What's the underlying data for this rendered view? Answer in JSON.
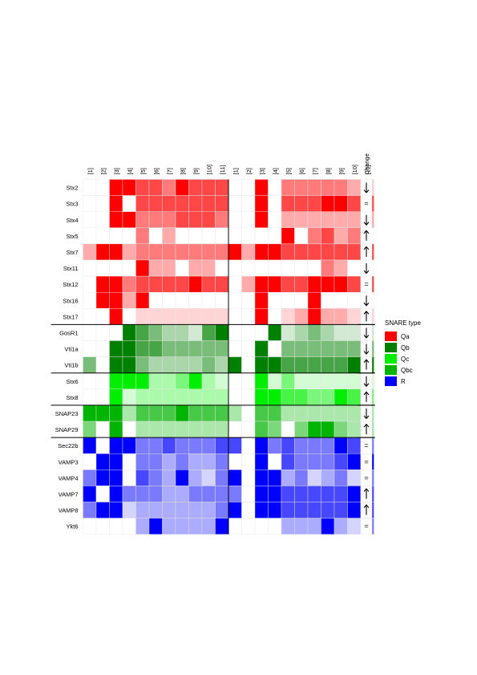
{
  "chart_data": {
    "type": "heatmap",
    "columns": [
      "[1]",
      "[2]",
      "[3]",
      "[4]",
      "[5]",
      "[6]",
      "[7]",
      "[8]",
      "[9]",
      "[10]",
      "[11]",
      "[1]",
      "[2]",
      "[3]",
      "[4]",
      "[5]",
      "[6]",
      "[7]",
      "[8]",
      "[9]",
      "[10]",
      "[11]"
    ],
    "change_header": "Change",
    "scale": "0 = absent (white), 1 = weak (very light), 2 = low, 3 = medium, 4 = high, 5 = strongest (full colour)",
    "legend": {
      "title": "SNARE type",
      "items": [
        {
          "label": "Qa",
          "color": "#ff0000"
        },
        {
          "label": "Qb",
          "color": "#008000"
        },
        {
          "label": "Qc",
          "color": "#00ee00"
        },
        {
          "label": "Qbc",
          "color": "#00b400"
        },
        {
          "label": "R",
          "color": "#0000ff"
        }
      ]
    },
    "rows": [
      {
        "name": "Stx2",
        "type": "Qa",
        "change": "↓",
        "values": [
          0,
          0,
          5,
          5,
          4,
          4,
          3,
          5,
          4,
          4,
          4,
          0,
          0,
          5,
          0,
          3,
          3,
          3,
          3,
          3,
          2,
          1
        ]
      },
      {
        "name": "Stx3",
        "type": "Qa",
        "change": "=",
        "values": [
          0,
          0,
          5,
          0,
          4,
          4,
          4,
          4,
          4,
          4,
          4,
          0,
          0,
          5,
          0,
          4,
          4,
          4,
          5,
          5,
          4,
          4
        ]
      },
      {
        "name": "Stx4",
        "type": "Qa",
        "change": "↓",
        "values": [
          0,
          0,
          5,
          5,
          3,
          3,
          3,
          4,
          4,
          4,
          3,
          0,
          0,
          5,
          0,
          2,
          2,
          2,
          2,
          2,
          2,
          2
        ]
      },
      {
        "name": "Stx5",
        "type": "Qa",
        "change": "↑",
        "values": [
          0,
          0,
          0,
          0,
          3,
          0,
          2,
          0,
          0,
          0,
          0,
          0,
          0,
          0,
          0,
          5,
          0,
          3,
          4,
          2,
          3,
          0
        ]
      },
      {
        "name": "Stx7",
        "type": "Qa",
        "change": "↑",
        "values": [
          2,
          5,
          5,
          2,
          3,
          3,
          3,
          3,
          3,
          3,
          3,
          5,
          2,
          5,
          5,
          4,
          4,
          4,
          4,
          4,
          4,
          4
        ]
      },
      {
        "name": "Stx11",
        "type": "Qa",
        "change": "↓",
        "values": [
          0,
          0,
          0,
          0,
          5,
          2,
          2,
          0,
          2,
          2,
          0,
          0,
          0,
          0,
          0,
          0,
          0,
          0,
          3,
          2,
          0,
          0
        ]
      },
      {
        "name": "Stx12",
        "type": "Qa",
        "change": "=",
        "values": [
          0,
          5,
          5,
          3,
          4,
          4,
          4,
          4,
          5,
          4,
          4,
          0,
          2,
          5,
          5,
          4,
          4,
          5,
          5,
          5,
          4,
          4
        ]
      },
      {
        "name": "Stx16",
        "type": "Qa",
        "change": "↓",
        "values": [
          0,
          5,
          5,
          2,
          5,
          0,
          0,
          0,
          0,
          0,
          0,
          0,
          0,
          5,
          0,
          0,
          0,
          5,
          0,
          0,
          0,
          0
        ]
      },
      {
        "name": "Stx17",
        "type": "Qa",
        "change": "↑",
        "values": [
          0,
          0,
          5,
          0,
          1,
          1,
          1,
          1,
          1,
          1,
          1,
          0,
          0,
          5,
          0,
          1,
          2,
          5,
          2,
          2,
          1,
          1
        ]
      },
      {
        "name": "GosR1",
        "type": "Qb",
        "change": "↓",
        "values": [
          0,
          0,
          0,
          5,
          4,
          3,
          2,
          2,
          1,
          4,
          5,
          0,
          0,
          0,
          5,
          1,
          2,
          3,
          2,
          1,
          1,
          1
        ]
      },
      {
        "name": "Vti1a",
        "type": "Qb",
        "change": "↓",
        "values": [
          0,
          0,
          5,
          5,
          4,
          4,
          3,
          3,
          3,
          3,
          3,
          0,
          0,
          5,
          0,
          3,
          3,
          3,
          3,
          3,
          3,
          3
        ]
      },
      {
        "name": "Vti1b",
        "type": "Qb",
        "change": "↑",
        "values": [
          3,
          0,
          5,
          5,
          3,
          2,
          2,
          2,
          2,
          3,
          2,
          5,
          0,
          5,
          5,
          4,
          4,
          4,
          4,
          4,
          5,
          5
        ]
      },
      {
        "name": "Stx6",
        "type": "Qc",
        "change": "↓",
        "values": [
          0,
          0,
          5,
          5,
          5,
          2,
          2,
          3,
          5,
          2,
          1,
          0,
          0,
          5,
          1,
          3,
          1,
          1,
          1,
          1,
          1,
          1
        ]
      },
      {
        "name": "Stx8",
        "type": "Qc",
        "change": "↑",
        "values": [
          0,
          0,
          5,
          1,
          2,
          2,
          2,
          2,
          2,
          2,
          2,
          0,
          0,
          5,
          5,
          4,
          4,
          3,
          3,
          5,
          4,
          3
        ]
      },
      {
        "name": "SNAP23",
        "type": "Qbc",
        "change": "↓",
        "values": [
          5,
          5,
          5,
          2,
          4,
          4,
          4,
          5,
          4,
          4,
          4,
          2,
          0,
          4,
          4,
          2,
          2,
          2,
          2,
          2,
          2,
          2
        ]
      },
      {
        "name": "SNAP29",
        "type": "Qbc",
        "change": "↑",
        "values": [
          3,
          0,
          5,
          0,
          2,
          2,
          2,
          2,
          2,
          2,
          2,
          0,
          0,
          4,
          3,
          0,
          3,
          5,
          5,
          3,
          2,
          2
        ]
      },
      {
        "name": "Sec22b",
        "type": "R",
        "change": "=",
        "values": [
          5,
          0,
          5,
          5,
          3,
          3,
          4,
          3,
          3,
          3,
          4,
          4,
          0,
          5,
          3,
          4,
          3,
          3,
          3,
          5,
          4,
          3
        ]
      },
      {
        "name": "VAMP3",
        "type": "R",
        "change": "=",
        "values": [
          0,
          5,
          5,
          0,
          3,
          3,
          2,
          3,
          2,
          2,
          3,
          0,
          0,
          5,
          0,
          4,
          3,
          3,
          3,
          4,
          5,
          5
        ]
      },
      {
        "name": "VAMP4",
        "type": "R",
        "change": "=",
        "values": [
          3,
          5,
          5,
          0,
          4,
          3,
          2,
          5,
          2,
          1,
          3,
          5,
          0,
          5,
          5,
          2,
          3,
          1,
          2,
          3,
          1,
          3
        ]
      },
      {
        "name": "VAMP7",
        "type": "R",
        "change": "↑",
        "values": [
          5,
          0,
          5,
          3,
          3,
          3,
          2,
          2,
          3,
          3,
          3,
          3,
          0,
          5,
          5,
          4,
          4,
          4,
          4,
          4,
          5,
          4
        ]
      },
      {
        "name": "VAMP8",
        "type": "R",
        "change": "↑",
        "values": [
          3,
          5,
          5,
          1,
          2,
          2,
          2,
          2,
          2,
          2,
          3,
          5,
          0,
          5,
          5,
          4,
          4,
          4,
          4,
          4,
          5,
          4
        ]
      },
      {
        "name": "Ykt6",
        "type": "R",
        "change": "=",
        "values": [
          0,
          0,
          0,
          0,
          2,
          5,
          2,
          2,
          2,
          2,
          5,
          0,
          0,
          0,
          0,
          2,
          2,
          2,
          5,
          2,
          1,
          3
        ]
      }
    ]
  }
}
